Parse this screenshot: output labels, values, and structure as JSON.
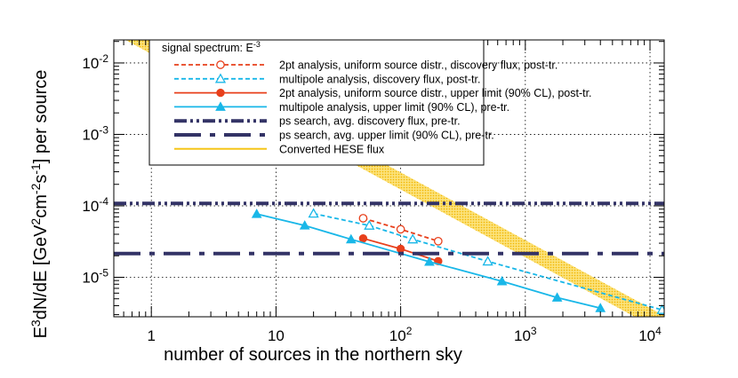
{
  "chart_data": {
    "type": "line",
    "title": "",
    "xlabel": "number of sources in the northern sky",
    "ylabel": "E^3dN/dE [GeV^2cm^-2s^-1] per source",
    "x_scale": "log",
    "y_scale": "log",
    "xlim": [
      0.5,
      13000
    ],
    "ylim": [
      2.8e-06,
      0.021
    ],
    "grid": true,
    "legend_placement": "top-center",
    "legend_title": "signal spectrum: E^-3",
    "x_ticks": [
      {
        "value": 1,
        "label": "1"
      },
      {
        "value": 10,
        "label": "10"
      },
      {
        "value": 100,
        "label": "10",
        "exp": "2"
      },
      {
        "value": 1000,
        "label": "10",
        "exp": "3"
      },
      {
        "value": 10000,
        "label": "10",
        "exp": "4"
      }
    ],
    "y_ticks": [
      {
        "value": 1e-05,
        "label": "10",
        "exp": "-5"
      },
      {
        "value": 0.0001,
        "label": "10",
        "exp": "-4"
      },
      {
        "value": 0.001,
        "label": "10",
        "exp": "-3"
      },
      {
        "value": 0.01,
        "label": "10",
        "exp": "-2"
      }
    ],
    "series": [
      {
        "name": "2pt analysis, uniform source distr., discovery flux, post-tr.",
        "color": "#e8401c",
        "line": "dashed",
        "marker": "open-circle",
        "x": [
          50,
          100,
          200
        ],
        "y": [
          6.7e-05,
          4.7e-05,
          3.2e-05
        ]
      },
      {
        "name": "multipole analysis, discovery flux, post-tr.",
        "color": "#19b7e8",
        "line": "dashed",
        "marker": "open-triangle",
        "x": [
          20,
          56,
          125,
          500,
          12500
        ],
        "y": [
          7.8e-05,
          5.3e-05,
          3.4e-05,
          1.67e-05,
          3.5e-06
        ]
      },
      {
        "name": "2pt analysis, uniform source distr., upper limit (90% CL), post-tr.",
        "color": "#e8401c",
        "line": "solid",
        "marker": "filled-circle",
        "x": [
          50,
          100,
          200
        ],
        "y": [
          3.5e-05,
          2.5e-05,
          1.68e-05
        ]
      },
      {
        "name": "multipole analysis, upper limit (90% CL), pre-tr.",
        "color": "#19b7e8",
        "line": "solid",
        "marker": "filled-triangle",
        "x": [
          7,
          17,
          40,
          170,
          650,
          1800,
          4000
        ],
        "y": [
          7.7e-05,
          5.3e-05,
          3.4e-05,
          1.65e-05,
          8.8e-06,
          5.2e-06,
          3.7e-06
        ]
      },
      {
        "name": "ps search, avg. discovery flux, pre-tr.",
        "color": "#333366",
        "line": "dash-dot-dot",
        "marker": "none",
        "x": [
          0.5,
          13000
        ],
        "y": [
          0.000108,
          0.000108
        ]
      },
      {
        "name": "ps search, avg. upper limit (90% CL), pre-tr.",
        "color": "#333366",
        "line": "long-dash-dot",
        "marker": "none",
        "x": [
          0.5,
          13000
        ],
        "y": [
          2.15e-05,
          2.15e-05
        ]
      },
      {
        "name": "Converted HESE flux",
        "color": "#f5c518",
        "line": "band",
        "marker": "none",
        "x": [
          0.5,
          13000
        ],
        "y": [
          0.034,
          2.2e-06
        ],
        "band_halfwidth_decades": 0.12
      }
    ]
  }
}
